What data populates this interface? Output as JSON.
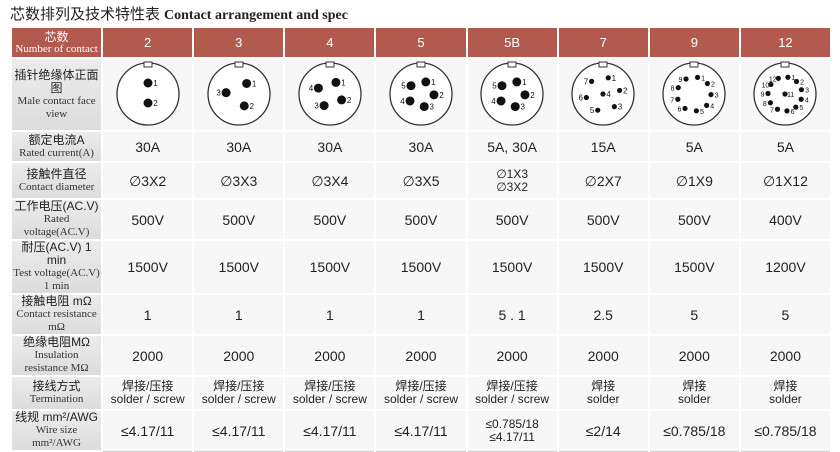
{
  "title": {
    "zh": "芯数排列及技术特性表",
    "en": "Contact arrangement and spec"
  },
  "table": {
    "header": {
      "label": [
        "芯数",
        "Number of contact"
      ],
      "cells": [
        "2",
        "3",
        "4",
        "5",
        "5B",
        "7",
        "9",
        "12"
      ]
    },
    "faces": {
      "label": [
        "插针绝缘体正面图",
        "Male contact face view"
      ],
      "cells": [
        [
          "1",
          "2"
        ],
        [
          "1",
          "2",
          "3"
        ],
        [
          "1",
          "2",
          "3",
          "4"
        ],
        [
          "1",
          "2",
          "3",
          "4",
          "5"
        ],
        [
          "1",
          "2",
          "3",
          "4",
          "5"
        ],
        [
          "1",
          "2",
          "3",
          "4",
          "5",
          "6",
          "7"
        ],
        [
          "1",
          "2",
          "3",
          "4",
          "5",
          "6",
          "7",
          "8",
          "9"
        ],
        [
          "1",
          "2",
          "3",
          "4",
          "5",
          "6",
          "7",
          "8",
          "9",
          "10",
          "11",
          "12"
        ]
      ]
    },
    "rows": [
      {
        "label": [
          "额定电流A",
          "Rated current(A)"
        ],
        "cells": [
          [
            "30A"
          ],
          [
            "30A"
          ],
          [
            "30A"
          ],
          [
            "30A"
          ],
          [
            "5A, 30A"
          ],
          [
            "15A"
          ],
          [
            "5A"
          ],
          [
            "5A"
          ]
        ]
      },
      {
        "label": [
          "接触件直径",
          "Contact diameter"
        ],
        "cells": [
          [
            "∅3X2"
          ],
          [
            "∅3X3"
          ],
          [
            "∅3X4"
          ],
          [
            "∅3X5"
          ],
          [
            "∅1X3",
            "∅3X2"
          ],
          [
            "∅2X7"
          ],
          [
            "∅1X9"
          ],
          [
            "∅1X12"
          ]
        ]
      },
      {
        "label": [
          "工作电压(AC.V)",
          "Rated voltage(AC.V)"
        ],
        "cells": [
          [
            "500V"
          ],
          [
            "500V"
          ],
          [
            "500V"
          ],
          [
            "500V"
          ],
          [
            "500V"
          ],
          [
            "500V"
          ],
          [
            "500V"
          ],
          [
            "400V"
          ]
        ]
      },
      {
        "label": [
          "耐压(AC.V) 1 min",
          "Test voltage(AC.V) 1 min"
        ],
        "cells": [
          [
            "1500V"
          ],
          [
            "1500V"
          ],
          [
            "1500V"
          ],
          [
            "1500V"
          ],
          [
            "1500V"
          ],
          [
            "1500V"
          ],
          [
            "1500V"
          ],
          [
            "1200V"
          ]
        ]
      },
      {
        "label": [
          "接触电阻 mΩ",
          "Contact resistance mΩ"
        ],
        "cells": [
          [
            "1"
          ],
          [
            "1"
          ],
          [
            "1"
          ],
          [
            "1"
          ],
          [
            "5 . 1"
          ],
          [
            "2.5"
          ],
          [
            "5"
          ],
          [
            "5"
          ]
        ]
      },
      {
        "label": [
          "绝缘电阻MΩ",
          "Insulation resistance MΩ"
        ],
        "cells": [
          [
            "2000"
          ],
          [
            "2000"
          ],
          [
            "2000"
          ],
          [
            "2000"
          ],
          [
            "2000"
          ],
          [
            "2000"
          ],
          [
            "2000"
          ],
          [
            "2000"
          ]
        ]
      },
      {
        "label": [
          "接线方式",
          "Termination"
        ],
        "cells": [
          [
            "焊接/压接",
            "solder / screw"
          ],
          [
            "焊接/压接",
            "solder / screw"
          ],
          [
            "焊接/压接",
            "solder / screw"
          ],
          [
            "焊接/压接",
            "solder / screw"
          ],
          [
            "焊接/压接",
            "solder / screw"
          ],
          [
            "焊接",
            "solder"
          ],
          [
            "焊接",
            "solder"
          ],
          [
            "焊接",
            "solder"
          ]
        ]
      },
      {
        "label": [
          "线规 mm²/AWG",
          "Wire size mm²/AWG"
        ],
        "cells": [
          [
            "≤4.17/11"
          ],
          [
            "≤4.17/11"
          ],
          [
            "≤4.17/11"
          ],
          [
            "≤4.17/11"
          ],
          [
            "≤0.785/18",
            "≤4.17/11"
          ],
          [
            "≤2/14"
          ],
          [
            "≤0.785/18"
          ],
          [
            "≤0.785/18"
          ]
        ]
      }
    ]
  }
}
